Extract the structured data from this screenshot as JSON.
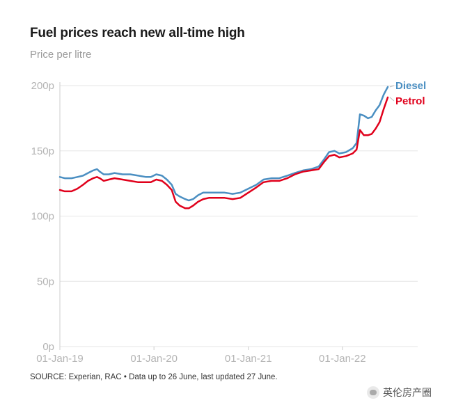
{
  "title": "Fuel prices reach new all-time high",
  "subtitle": "Price per litre",
  "source": "SOURCE: Experian, RAC • Data up to 26 June, last updated 27 June.",
  "watermark": "英伦房产圈",
  "colors": {
    "diesel": "#4b8fc2",
    "petrol": "#e0001b",
    "grid": "#e6e6e6",
    "axis": "#cccccc"
  },
  "chart_data": {
    "type": "line",
    "title": "Fuel prices reach new all-time high",
    "ylabel": "Price per litre",
    "ylim": [
      0,
      200
    ],
    "xlim": [
      "2019-01-01",
      "2022-06-26"
    ],
    "y_ticks": [
      {
        "value": 0,
        "label": "0p"
      },
      {
        "value": 50,
        "label": "50p"
      },
      {
        "value": 100,
        "label": "100p"
      },
      {
        "value": 150,
        "label": "150p"
      },
      {
        "value": 200,
        "label": "200p"
      }
    ],
    "x_ticks": [
      {
        "value": "2019-01-01",
        "label": "01-Jan-19"
      },
      {
        "value": "2020-01-01",
        "label": "01-Jan-20"
      },
      {
        "value": "2021-01-01",
        "label": "01-Jan-21"
      },
      {
        "value": "2022-01-01",
        "label": "01-Jan-22"
      }
    ],
    "grid": true,
    "legend_placement": "right end of lines",
    "series": [
      {
        "name": "Diesel",
        "color": "#4b8fc2",
        "points": [
          [
            "2019-01-01",
            130
          ],
          [
            "2019-01-20",
            129
          ],
          [
            "2019-02-15",
            129
          ],
          [
            "2019-03-10",
            130
          ],
          [
            "2019-04-01",
            131
          ],
          [
            "2019-04-20",
            133
          ],
          [
            "2019-05-10",
            135
          ],
          [
            "2019-05-25",
            136
          ],
          [
            "2019-06-05",
            134
          ],
          [
            "2019-06-20",
            132
          ],
          [
            "2019-07-10",
            132
          ],
          [
            "2019-08-01",
            133
          ],
          [
            "2019-09-01",
            132
          ],
          [
            "2019-10-01",
            132
          ],
          [
            "2019-11-01",
            131
          ],
          [
            "2019-12-01",
            130
          ],
          [
            "2019-12-20",
            130
          ],
          [
            "2020-01-10",
            132
          ],
          [
            "2020-02-01",
            131
          ],
          [
            "2020-02-20",
            128
          ],
          [
            "2020-03-10",
            124
          ],
          [
            "2020-03-25",
            117
          ],
          [
            "2020-04-10",
            115
          ],
          [
            "2020-05-01",
            113
          ],
          [
            "2020-05-15",
            112
          ],
          [
            "2020-06-01",
            113
          ],
          [
            "2020-06-20",
            116
          ],
          [
            "2020-07-10",
            118
          ],
          [
            "2020-08-01",
            118
          ],
          [
            "2020-09-01",
            118
          ],
          [
            "2020-10-01",
            118
          ],
          [
            "2020-11-01",
            117
          ],
          [
            "2020-12-01",
            118
          ],
          [
            "2021-01-01",
            121
          ],
          [
            "2021-02-01",
            124
          ],
          [
            "2021-03-01",
            128
          ],
          [
            "2021-04-01",
            129
          ],
          [
            "2021-05-01",
            129
          ],
          [
            "2021-06-01",
            131
          ],
          [
            "2021-07-01",
            133
          ],
          [
            "2021-08-01",
            135
          ],
          [
            "2021-09-01",
            136
          ],
          [
            "2021-10-01",
            138
          ],
          [
            "2021-10-20",
            143
          ],
          [
            "2021-11-10",
            149
          ],
          [
            "2021-12-01",
            150
          ],
          [
            "2021-12-20",
            148
          ],
          [
            "2022-01-15",
            149
          ],
          [
            "2022-02-10",
            152
          ],
          [
            "2022-02-25",
            156
          ],
          [
            "2022-03-10",
            178
          ],
          [
            "2022-03-25",
            177
          ],
          [
            "2022-04-10",
            175
          ],
          [
            "2022-04-25",
            176
          ],
          [
            "2022-05-10",
            181
          ],
          [
            "2022-05-25",
            185
          ],
          [
            "2022-06-10",
            193
          ],
          [
            "2022-06-26",
            199
          ]
        ]
      },
      {
        "name": "Petrol",
        "color": "#e0001b",
        "points": [
          [
            "2019-01-01",
            120
          ],
          [
            "2019-01-20",
            119
          ],
          [
            "2019-02-15",
            119
          ],
          [
            "2019-03-10",
            121
          ],
          [
            "2019-04-01",
            124
          ],
          [
            "2019-04-20",
            127
          ],
          [
            "2019-05-10",
            129
          ],
          [
            "2019-05-25",
            130
          ],
          [
            "2019-06-05",
            129
          ],
          [
            "2019-06-20",
            127
          ],
          [
            "2019-07-10",
            128
          ],
          [
            "2019-08-01",
            129
          ],
          [
            "2019-09-01",
            128
          ],
          [
            "2019-10-01",
            127
          ],
          [
            "2019-11-01",
            126
          ],
          [
            "2019-12-01",
            126
          ],
          [
            "2019-12-20",
            126
          ],
          [
            "2020-01-10",
            128
          ],
          [
            "2020-02-01",
            127
          ],
          [
            "2020-02-20",
            124
          ],
          [
            "2020-03-10",
            120
          ],
          [
            "2020-03-25",
            111
          ],
          [
            "2020-04-10",
            108
          ],
          [
            "2020-05-01",
            106
          ],
          [
            "2020-05-15",
            106
          ],
          [
            "2020-06-01",
            108
          ],
          [
            "2020-06-20",
            111
          ],
          [
            "2020-07-10",
            113
          ],
          [
            "2020-08-01",
            114
          ],
          [
            "2020-09-01",
            114
          ],
          [
            "2020-10-01",
            114
          ],
          [
            "2020-11-01",
            113
          ],
          [
            "2020-12-01",
            114
          ],
          [
            "2021-01-01",
            118
          ],
          [
            "2021-02-01",
            122
          ],
          [
            "2021-03-01",
            126
          ],
          [
            "2021-04-01",
            127
          ],
          [
            "2021-05-01",
            127
          ],
          [
            "2021-06-01",
            129
          ],
          [
            "2021-07-01",
            132
          ],
          [
            "2021-08-01",
            134
          ],
          [
            "2021-09-01",
            135
          ],
          [
            "2021-10-01",
            136
          ],
          [
            "2021-10-20",
            141
          ],
          [
            "2021-11-10",
            146
          ],
          [
            "2021-12-01",
            147
          ],
          [
            "2021-12-20",
            145
          ],
          [
            "2022-01-15",
            146
          ],
          [
            "2022-02-10",
            148
          ],
          [
            "2022-02-25",
            151
          ],
          [
            "2022-03-10",
            166
          ],
          [
            "2022-03-25",
            162
          ],
          [
            "2022-04-10",
            162
          ],
          [
            "2022-04-25",
            163
          ],
          [
            "2022-05-10",
            167
          ],
          [
            "2022-05-25",
            172
          ],
          [
            "2022-06-10",
            182
          ],
          [
            "2022-06-26",
            191
          ]
        ]
      }
    ]
  }
}
